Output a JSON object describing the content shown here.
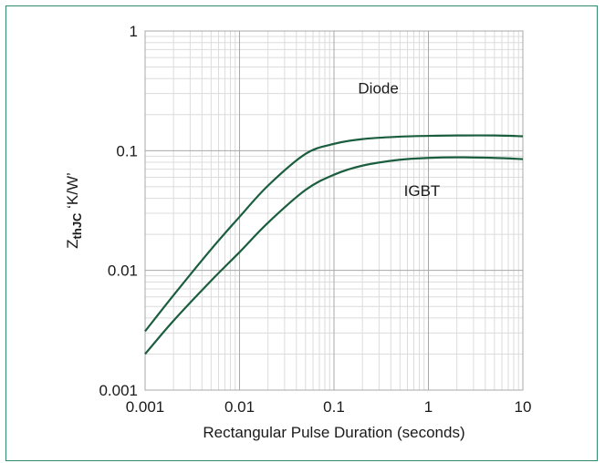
{
  "chart_data": {
    "type": "line",
    "xscale": "log",
    "yscale": "log",
    "xlim": [
      0.001,
      10
    ],
    "ylim": [
      0.001,
      1
    ],
    "xticks": [
      "0.001",
      "0.01",
      "0.1",
      "1",
      "10"
    ],
    "yticks": [
      "0.001",
      "0.01",
      "0.1",
      "1"
    ],
    "xlabel": "Rectangular Pulse Duration (seconds)",
    "ylabel": "Z",
    "ylabel_sub": "thJC",
    "ylabel_unit": " ‘K/W’",
    "grid": true,
    "line_color": "#1b5e3f",
    "frame_color": "#2e8a6a",
    "series": [
      {
        "name": "Diode",
        "x": [
          0.001,
          0.002,
          0.005,
          0.01,
          0.02,
          0.05,
          0.1,
          0.2,
          0.5,
          1,
          2,
          5,
          10
        ],
        "y": [
          0.0031,
          0.0062,
          0.015,
          0.028,
          0.051,
          0.094,
          0.114,
          0.125,
          0.131,
          0.133,
          0.134,
          0.134,
          0.132
        ]
      },
      {
        "name": "IGBT",
        "x": [
          0.001,
          0.002,
          0.005,
          0.01,
          0.02,
          0.05,
          0.1,
          0.2,
          0.5,
          1,
          2,
          5,
          10
        ],
        "y": [
          0.002,
          0.0038,
          0.0082,
          0.0142,
          0.025,
          0.047,
          0.063,
          0.075,
          0.084,
          0.087,
          0.088,
          0.087,
          0.085
        ]
      }
    ]
  }
}
